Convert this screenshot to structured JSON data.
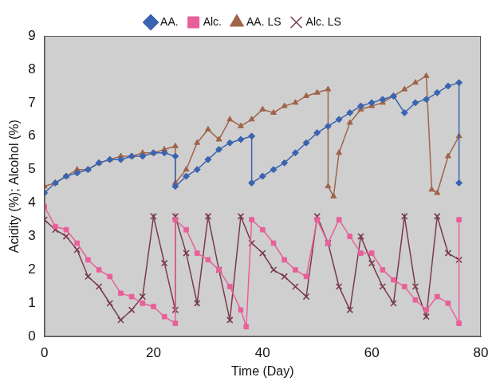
{
  "chart_data": {
    "type": "line",
    "x_label": "Time (Day)",
    "y_label": "Acidity (%); Alcohol (%)",
    "xlim": [
      0,
      80
    ],
    "xticks": [
      0,
      20,
      40,
      60,
      80
    ],
    "ylim": [
      0,
      9
    ],
    "yticks": [
      0,
      1,
      2,
      3,
      4,
      5,
      6,
      7,
      8,
      9
    ],
    "grid": false,
    "legend": "top",
    "series": [
      {
        "name": "AA.",
        "color": "#3b64b0",
        "marker": "diamond",
        "line_style": "solid",
        "x": [
          0,
          2,
          4,
          6,
          8,
          10,
          12,
          14,
          16,
          18,
          20,
          22,
          24,
          24,
          26,
          28,
          30,
          32,
          34,
          36,
          38,
          38,
          40,
          42,
          44,
          46,
          48,
          50,
          52,
          54,
          56,
          58,
          60,
          62,
          64,
          66,
          68,
          70,
          72,
          74,
          76,
          76
        ],
        "values": [
          4.3,
          4.6,
          4.8,
          4.9,
          5.0,
          5.2,
          5.3,
          5.3,
          5.4,
          5.4,
          5.5,
          5.5,
          5.4,
          4.5,
          4.8,
          5.0,
          5.3,
          5.6,
          5.8,
          5.9,
          6.0,
          4.6,
          4.8,
          5.0,
          5.2,
          5.5,
          5.8,
          6.1,
          6.3,
          6.5,
          6.7,
          6.9,
          7.0,
          7.1,
          7.2,
          6.7,
          7.0,
          7.1,
          7.3,
          7.5,
          7.6,
          4.6
        ]
      },
      {
        "name": "Alc.",
        "color": "#e8609a",
        "marker": "square",
        "line_style": "solid",
        "x": [
          0,
          2,
          4,
          6,
          8,
          10,
          12,
          14,
          16,
          18,
          20,
          22,
          24,
          24,
          26,
          28,
          30,
          32,
          34,
          36,
          37,
          38,
          40,
          42,
          44,
          46,
          48,
          50,
          52,
          54,
          56,
          58,
          60,
          62,
          64,
          66,
          68,
          70,
          72,
          74,
          76,
          76
        ],
        "values": [
          3.9,
          3.3,
          3.2,
          2.8,
          2.3,
          2.0,
          1.8,
          1.3,
          1.2,
          1.0,
          0.9,
          0.6,
          0.4,
          3.5,
          3.2,
          2.5,
          2.3,
          2.0,
          1.5,
          0.8,
          0.3,
          3.5,
          3.2,
          2.8,
          2.3,
          2.0,
          1.8,
          3.5,
          2.8,
          3.5,
          3.0,
          2.5,
          2.5,
          2.0,
          1.7,
          1.5,
          1.1,
          0.8,
          1.2,
          1.0,
          0.4,
          3.5
        ]
      },
      {
        "name": "AA. LS",
        "color": "#a0644a",
        "marker": "triangle",
        "line_style": "solid",
        "x": [
          0,
          2,
          4,
          6,
          8,
          10,
          12,
          14,
          16,
          18,
          20,
          22,
          24,
          24,
          26,
          28,
          30,
          32,
          34,
          36,
          38,
          40,
          42,
          44,
          46,
          48,
          50,
          52,
          52,
          53,
          54,
          56,
          58,
          60,
          62,
          64,
          66,
          68,
          70,
          71,
          72,
          74,
          76
        ],
        "values": [
          4.5,
          4.6,
          4.8,
          5.0,
          5.0,
          5.2,
          5.3,
          5.4,
          5.4,
          5.5,
          5.5,
          5.6,
          5.7,
          4.6,
          5.0,
          5.8,
          6.2,
          5.9,
          6.5,
          6.3,
          6.5,
          6.8,
          6.7,
          6.9,
          7.0,
          7.2,
          7.3,
          7.4,
          4.5,
          4.2,
          5.5,
          6.4,
          6.8,
          6.9,
          7.0,
          7.2,
          7.4,
          7.6,
          7.8,
          4.4,
          4.3,
          5.4,
          6.0
        ]
      },
      {
        "name": "Alc. LS",
        "color": "#7a3a4a",
        "marker": "cross",
        "line_style": "solid",
        "x": [
          0,
          2,
          4,
          6,
          8,
          10,
          12,
          14,
          16,
          18,
          20,
          22,
          24,
          24,
          26,
          28,
          30,
          32,
          34,
          36,
          38,
          40,
          42,
          44,
          46,
          48,
          50,
          52,
          54,
          56,
          58,
          60,
          62,
          64,
          66,
          68,
          70,
          72,
          74,
          76
        ],
        "values": [
          3.5,
          3.2,
          3.0,
          2.6,
          1.8,
          1.5,
          1.0,
          0.5,
          0.8,
          1.2,
          3.6,
          2.2,
          0.8,
          3.6,
          2.5,
          1.0,
          3.6,
          2.0,
          0.5,
          3.6,
          2.8,
          2.5,
          2.0,
          1.8,
          1.5,
          1.2,
          3.6,
          2.8,
          1.5,
          0.8,
          3.0,
          2.2,
          1.5,
          1.0,
          3.6,
          1.5,
          0.6,
          3.6,
          2.5,
          2.3
        ]
      }
    ]
  }
}
